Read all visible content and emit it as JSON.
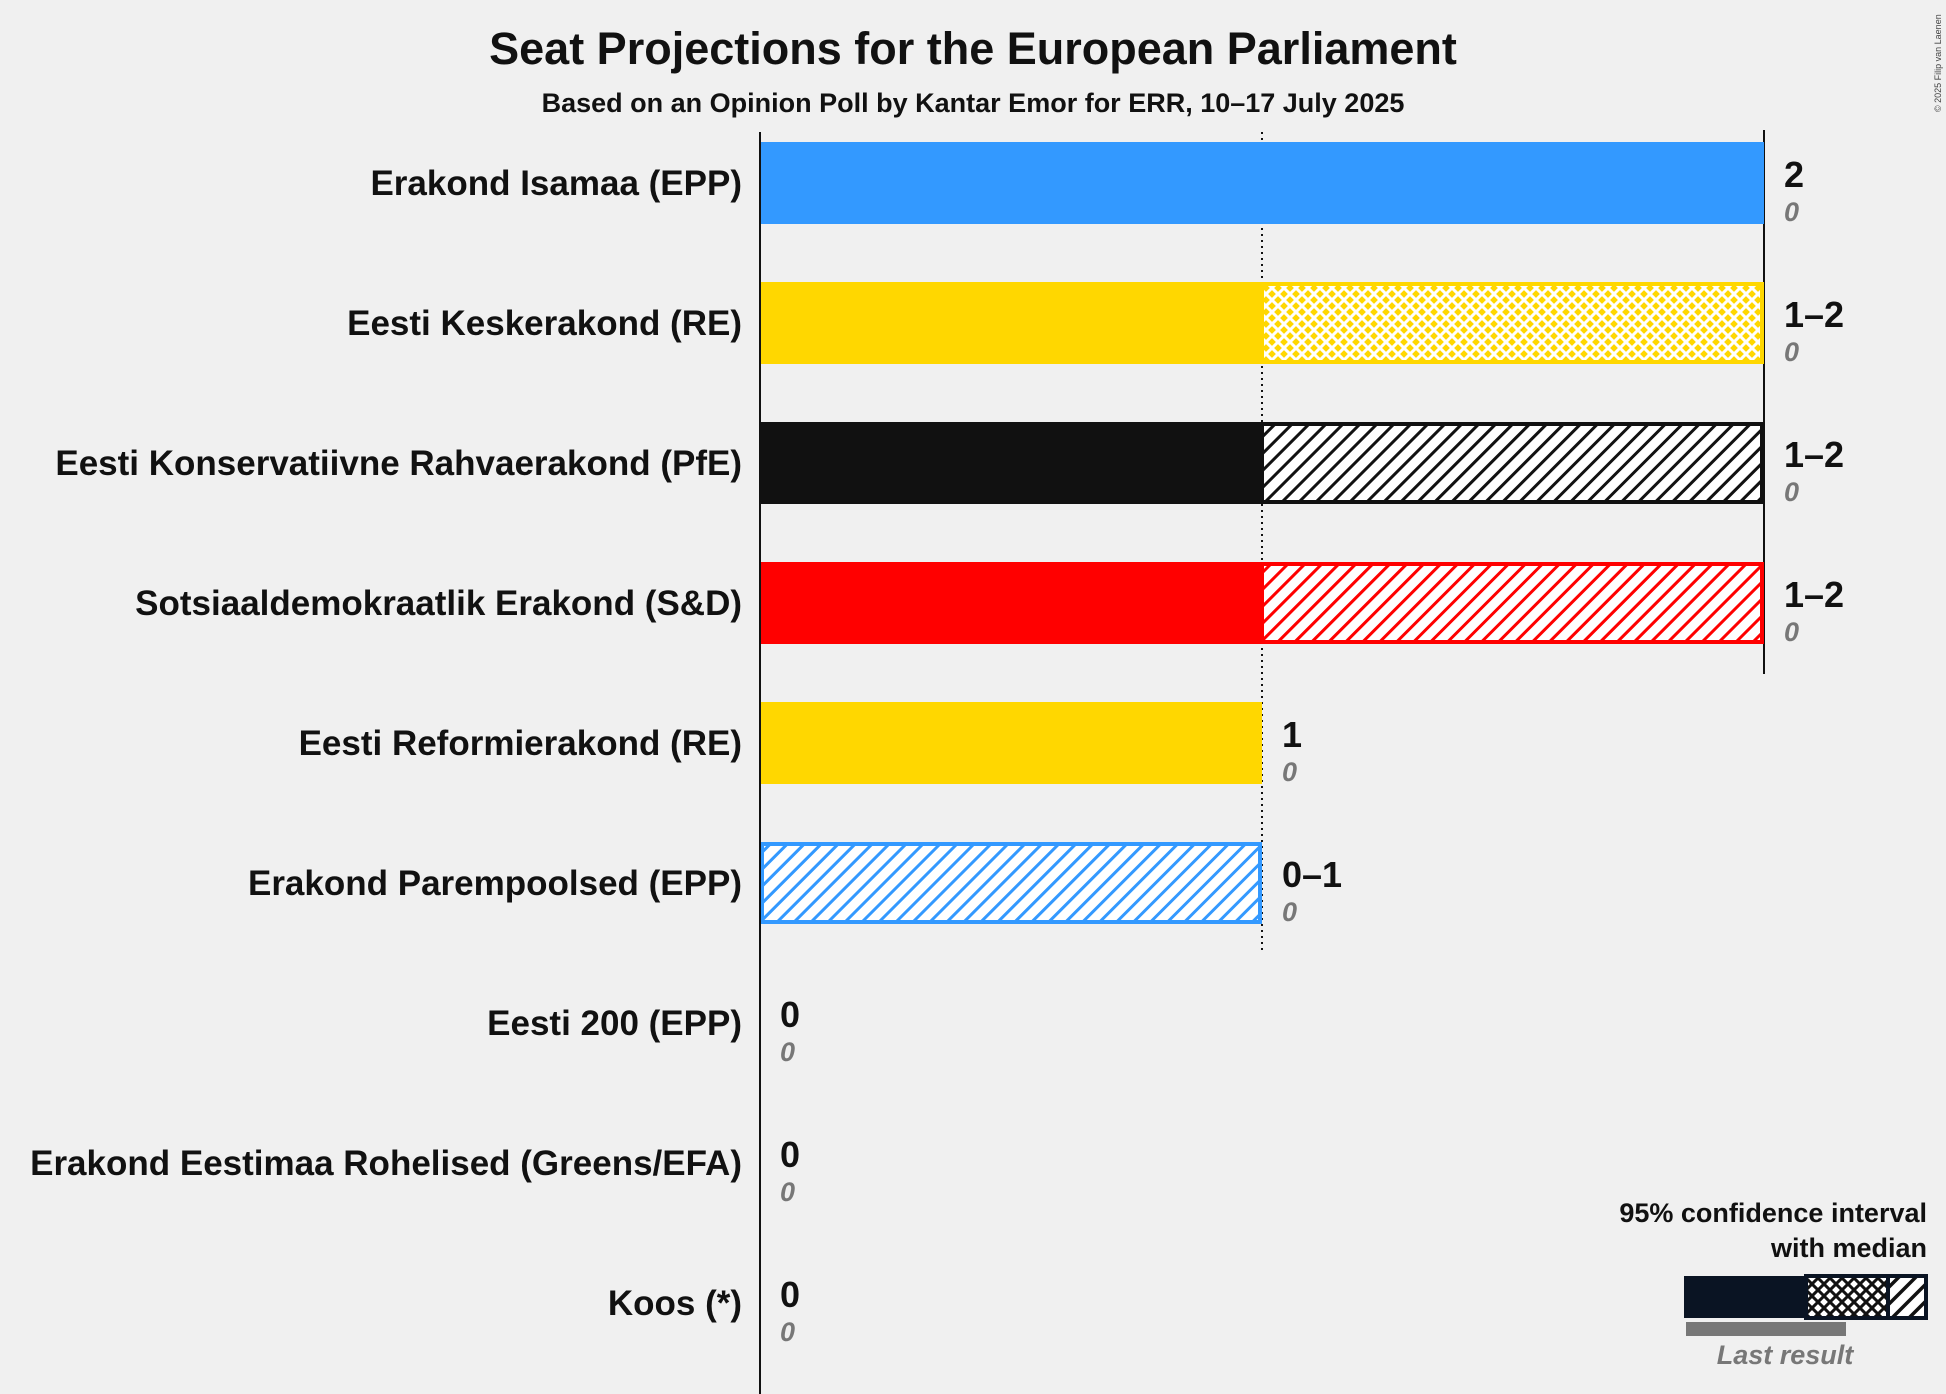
{
  "title": "Seat Projections for the European Parliament",
  "subtitle": "Based on an Opinion Poll by Kantar Emor for ERR, 10–17 July 2025",
  "copyright": "© 2025 Filip van Laenen",
  "chart_data": {
    "type": "bar",
    "orientation": "horizontal",
    "title": "Seat Projections for the European Parliament",
    "subtitle": "Based on an Opinion Poll by Kantar Emor for ERR, 10–17 July 2025",
    "xlim": [
      0,
      2
    ],
    "gridlines": [
      1
    ],
    "categories": [
      "Erakond Isamaa (EPP)",
      "Eesti Keskerakond (RE)",
      "Eesti Konservatiivne Rahvaerakond (PfE)",
      "Sotsiaaldemokraatlik Erakond (S&D)",
      "Eesti Reformierakond (RE)",
      "Erakond Parempoolsed (EPP)",
      "Eesti 200 (EPP)",
      "Erakond Eestimaa Rohelised (Greens/EFA)",
      "Koos (*)"
    ],
    "series": [
      {
        "name": "95% confidence interval with median",
        "data": [
          {
            "party": "Erakond Isamaa (EPP)",
            "low": 2,
            "median": 2,
            "high": 2,
            "range_label": "2",
            "color": "#3399ff"
          },
          {
            "party": "Eesti Keskerakond (RE)",
            "low": 1,
            "median": 1,
            "high": 2,
            "range_label": "1–2",
            "color": "#ffd700"
          },
          {
            "party": "Eesti Konservatiivne Rahvaerakond (PfE)",
            "low": 1,
            "median": 1,
            "high": 2,
            "range_label": "1–2",
            "color": "#111111"
          },
          {
            "party": "Sotsiaaldemokraatlik Erakond (S&D)",
            "low": 1,
            "median": 1,
            "high": 2,
            "range_label": "1–2",
            "color": "#ff0000"
          },
          {
            "party": "Eesti Reformierakond (RE)",
            "low": 1,
            "median": 1,
            "high": 1,
            "range_label": "1",
            "color": "#ffd700"
          },
          {
            "party": "Erakond Parempoolsed (EPP)",
            "low": 0,
            "median": 0,
            "high": 1,
            "range_label": "0–1",
            "color": "#3399ff"
          },
          {
            "party": "Eesti 200 (EPP)",
            "low": 0,
            "median": 0,
            "high": 0,
            "range_label": "0",
            "color": "#3399ff"
          },
          {
            "party": "Erakond Eestimaa Rohelised (Greens/EFA)",
            "low": 0,
            "median": 0,
            "high": 0,
            "range_label": "0",
            "color": "#33aa33"
          },
          {
            "party": "Koos (*)",
            "low": 0,
            "median": 0,
            "high": 0,
            "range_label": "0",
            "color": "#888888"
          }
        ]
      },
      {
        "name": "Last result",
        "values": [
          0,
          0,
          0,
          0,
          0,
          0,
          0,
          0,
          0
        ],
        "labels": [
          "0",
          "0",
          "0",
          "0",
          "0",
          "0",
          "0",
          "0",
          "0"
        ]
      }
    ]
  },
  "legend": {
    "line1": "95% confidence interval",
    "line2": "with median",
    "last_result": "Last result",
    "placement": "bottom-right"
  }
}
